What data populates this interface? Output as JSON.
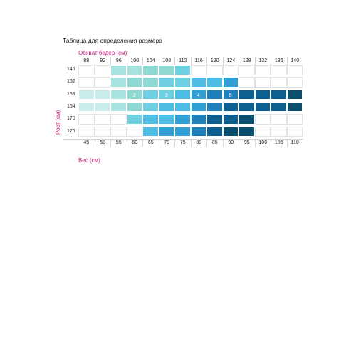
{
  "title": "Таблица для определения размера",
  "hip_label": "Обхват бедер (см)",
  "height_label": "Рост (см)",
  "weight_label": "Вес (см)",
  "hips": [
    "88",
    "92",
    "96",
    "100",
    "104",
    "108",
    "112",
    "116",
    "120",
    "124",
    "128",
    "132",
    "136",
    "140"
  ],
  "weights": [
    "45",
    "50",
    "55",
    "60",
    "65",
    "70",
    "75",
    "80",
    "85",
    "90",
    "95",
    "100",
    "105",
    "110"
  ],
  "heights": [
    "146",
    "152",
    "158",
    "164",
    "170",
    "176"
  ],
  "palette": {
    "s0": "#ffffff",
    "s1": "#c9ebea",
    "s2": "#a8e2df",
    "s3": "#8fd9d3",
    "s4": "#6fd0e2",
    "s5": "#4dbde6",
    "s6": "#2f9fd6",
    "s7": "#1f7fba",
    "s8": "#0d5f92",
    "s9": "#0a4f6e"
  },
  "grid": [
    [
      0,
      0,
      2,
      2,
      3,
      3,
      4,
      0,
      0,
      0,
      0,
      0,
      0,
      0
    ],
    [
      0,
      0,
      2,
      3,
      3,
      4,
      4,
      5,
      5,
      6,
      0,
      0,
      0,
      0
    ],
    [
      1,
      1,
      2,
      3,
      4,
      4,
      5,
      6,
      7,
      7,
      8,
      8,
      8,
      9
    ],
    [
      1,
      1,
      2,
      3,
      4,
      5,
      5,
      6,
      7,
      8,
      8,
      8,
      8,
      9
    ],
    [
      0,
      0,
      0,
      4,
      5,
      5,
      6,
      7,
      8,
      8,
      9,
      0,
      0,
      0
    ],
    [
      0,
      0,
      0,
      0,
      5,
      6,
      6,
      7,
      8,
      9,
      9,
      0,
      0,
      0
    ]
  ],
  "size_marks": [
    {
      "row": 2,
      "col": 3,
      "label": "2"
    },
    {
      "row": 2,
      "col": 5,
      "label": "3"
    },
    {
      "row": 2,
      "col": 7,
      "label": "4"
    },
    {
      "row": 2,
      "col": 9,
      "label": "5"
    }
  ]
}
